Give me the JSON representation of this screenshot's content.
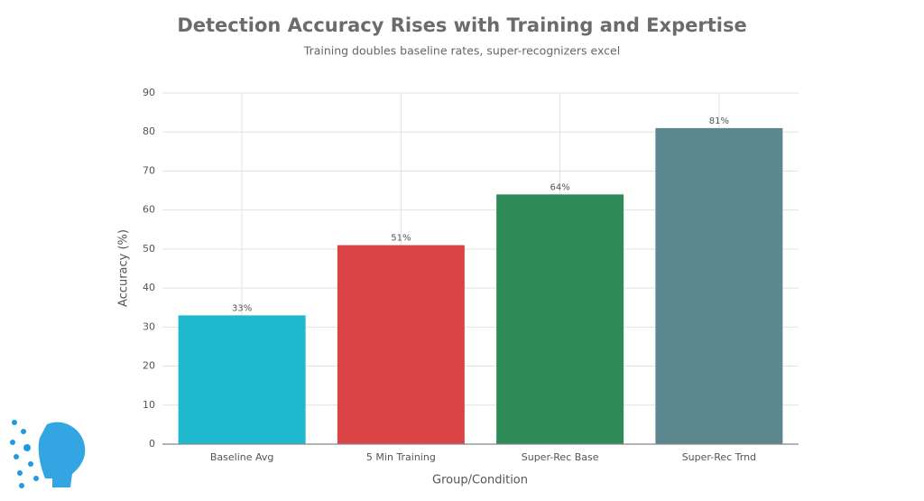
{
  "chart_data": {
    "type": "bar",
    "title": "Detection Accuracy Rises with Training and Expertise",
    "subtitle": "Training doubles baseline rates, super-recognizers excel",
    "x_label": "Group/Condition",
    "y_label": "Accuracy (%)",
    "categories": [
      "Baseline Avg",
      "5 Min Training",
      "Super-Rec Base",
      "Super-Rec Trnd"
    ],
    "values": [
      33,
      51,
      64,
      81
    ],
    "value_labels": [
      "33%",
      "51%",
      "64%",
      "81%"
    ],
    "colors": [
      "#1fb8cd",
      "#db4545",
      "#2e8b57",
      "#5d878f"
    ],
    "ylim": [
      0,
      90
    ],
    "yticks": [
      0,
      10,
      20,
      30,
      40,
      50,
      60,
      70,
      80,
      90
    ],
    "grid": true
  }
}
